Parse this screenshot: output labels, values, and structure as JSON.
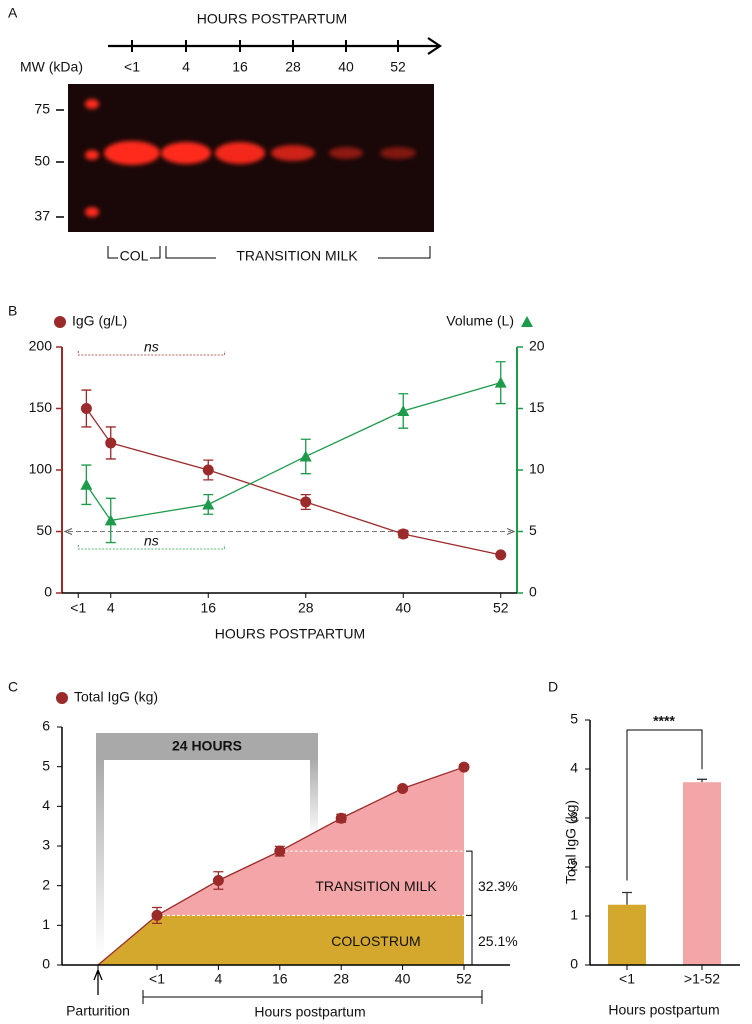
{
  "panel_labels": [
    "A",
    "B",
    "C",
    "D"
  ],
  "blot": {
    "title": "HOURS POSTPARTUM",
    "mw_label": "MW (kDa)",
    "lanes": [
      "<1",
      "4",
      "16",
      "28",
      "40",
      "52"
    ],
    "mw_markers": [
      75,
      50,
      37
    ],
    "groups": [
      "COL",
      "TRANSITION MILK"
    ]
  },
  "chart_data": [
    {
      "type": "line",
      "x_label": "HOURS POSTPARTUM",
      "x": [
        1,
        4,
        16,
        28,
        40,
        52
      ],
      "xlim": [
        -2,
        54
      ],
      "xticks": [
        {
          "value": 0,
          "label": "<1"
        },
        4,
        16,
        28,
        40,
        52
      ],
      "ylim": [
        0,
        200
      ],
      "yticks": [
        0,
        50,
        100,
        150,
        200
      ],
      "y2lim": [
        0,
        20
      ],
      "y2ticks": [
        0,
        5,
        10,
        15,
        20
      ],
      "reference_y": 50,
      "series": [
        {
          "name": "IgG (g/L)",
          "color": "#9b2a2a",
          "marker": "circle",
          "values": [
            150,
            122,
            100,
            74,
            48,
            31
          ],
          "errors": [
            15,
            13,
            8,
            6,
            3,
            1
          ]
        },
        {
          "name": "Volume (L)",
          "color": "#1e9a4b",
          "marker": "triangle",
          "axis": "y2",
          "values": [
            8.8,
            5.9,
            7.2,
            11.1,
            14.8,
            17.1
          ],
          "errors": [
            1.6,
            1.8,
            0.8,
            1.4,
            1.4,
            1.7
          ]
        }
      ],
      "annotations": [
        "ns",
        "ns"
      ]
    },
    {
      "type": "area",
      "x_label": "Hours postpartum",
      "categories": [
        "Parturition",
        "<1",
        "4",
        "16",
        "28",
        "40",
        "52"
      ],
      "ylim": [
        0,
        6
      ],
      "yticks": [
        0,
        1,
        2,
        3,
        4,
        5,
        6
      ],
      "series": [
        {
          "name": "Total IgG (kg)",
          "color": "#9b2a2a",
          "values": [
            0,
            1.25,
            2.13,
            2.87,
            3.7,
            4.45,
            4.99
          ],
          "errors": [
            null,
            0.2,
            0.22,
            0.12,
            0.1,
            0.06,
            0.05
          ]
        }
      ],
      "fill_colors": [
        "#d4a82c",
        "#f4a5a8"
      ],
      "bracket_label": "24 HOURS",
      "annotations": [
        "TRANSITION MILK",
        "32.3%",
        "COLOSTRUM",
        "25.1%"
      ]
    },
    {
      "type": "bar",
      "y_label": "Total IgG (kg)",
      "x_label": "Hours postpartum",
      "categories": [
        "<1",
        ">1-52"
      ],
      "values": [
        1.23,
        3.73
      ],
      "errors": [
        0.25,
        0.06
      ],
      "colors": [
        "#d4a82c",
        "#f4a5a8"
      ],
      "ylim": [
        0,
        5
      ],
      "yticks": [
        0,
        1,
        2,
        3,
        4,
        5
      ],
      "significance": "****"
    }
  ]
}
